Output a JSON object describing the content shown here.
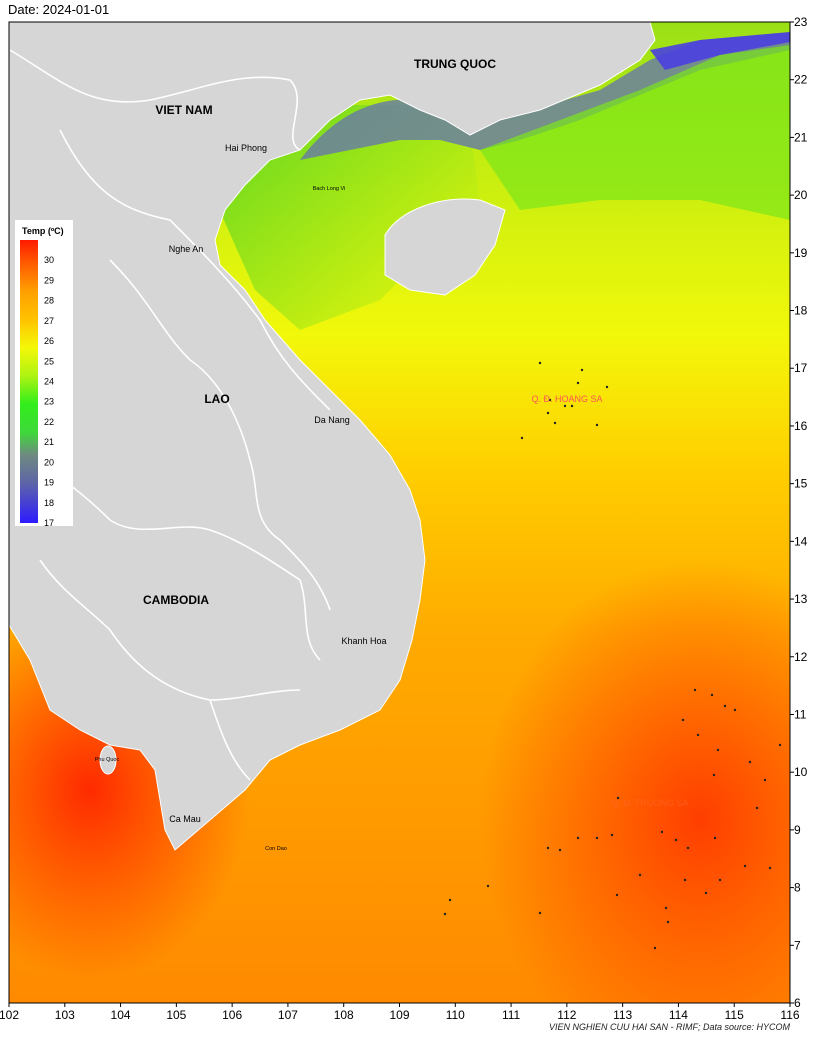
{
  "header": {
    "date": "Date: 2024-01-01"
  },
  "footer": {
    "credit": "VIEN NGHIEN CUU HAI SAN - RIMF; Data source: HYCOM"
  },
  "legend": {
    "title": "Temp (ºC)",
    "min": 17,
    "max": 31,
    "ticks": [
      17,
      18,
      19,
      20,
      21,
      22,
      23,
      24,
      25,
      26,
      27,
      28,
      29,
      30
    ]
  },
  "axes": {
    "x_ticks": [
      102,
      103,
      104,
      105,
      106,
      107,
      108,
      109,
      110,
      111,
      112,
      113,
      114,
      115,
      116
    ],
    "y_ticks": [
      6,
      7,
      8,
      9,
      10,
      11,
      12,
      13,
      14,
      15,
      16,
      17,
      18,
      19,
      20,
      21,
      22,
      23
    ],
    "lon_range": [
      102,
      116
    ],
    "lat_range": [
      6,
      23
    ]
  },
  "labels": {
    "countries": {
      "china": "TRUNG QUOC",
      "vietnam": "VIET NAM",
      "laos": "LAO",
      "cambodia": "CAMBODIA"
    },
    "places": {
      "hai_phong": "Hai Phong",
      "bach_long_vi": "Bach Long Vi",
      "nghe_an": "Nghe An",
      "da_nang": "Da Nang",
      "khanh_hoa": "Khanh Hoa",
      "phu_quoc": "Phu Quoc",
      "ca_mau": "Ca Mau",
      "con_dao": "Con Dao"
    },
    "archipelagos": {
      "hoang_sa": "Q. Đ. HOANG SA",
      "truong_sa": "Q. Đ. TRUONG SA"
    }
  },
  "colors": {
    "land": "#d6d6d6",
    "border": "#ffffff",
    "archipelago_label": "#ff5555",
    "scale": [
      "#2e1bff",
      "#3f3fd8",
      "#5e64a8",
      "#6e8a80",
      "#3fd83a",
      "#32ee1c",
      "#86f218",
      "#c7f512",
      "#f4f808",
      "#ffe500",
      "#ffc200",
      "#ff9f00",
      "#ff7a00",
      "#ff4c00",
      "#ff1a00"
    ]
  }
}
